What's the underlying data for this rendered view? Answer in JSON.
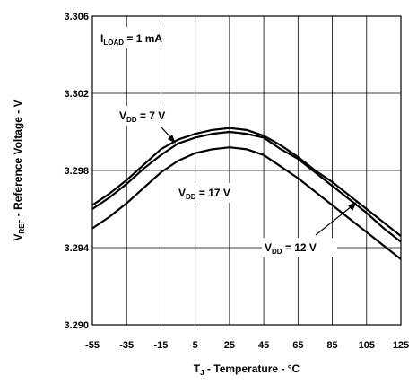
{
  "chart_data": {
    "type": "line",
    "title": "",
    "xlabel": {
      "main": "T",
      "sub": "J",
      "rest": " - Temperature - °C"
    },
    "ylabel": {
      "main": "V",
      "sub": "REF",
      "rest": " - Reference Voltage - V"
    },
    "xlim": [
      -55,
      125
    ],
    "ylim": [
      3.29,
      3.306
    ],
    "xticks": [
      -55,
      -35,
      -15,
      5,
      25,
      45,
      65,
      85,
      105,
      125
    ],
    "xtick_labels": [
      "-55",
      "-35",
      "-15",
      "5",
      "25",
      "45",
      "65",
      "85",
      "105",
      "125"
    ],
    "yticks_major": [
      3.29,
      3.294,
      3.298,
      3.302,
      3.306
    ],
    "ytick_labels": [
      "3.290",
      "3.294",
      "3.298",
      "3.302",
      "3.306"
    ],
    "yticks_grid": [
      3.29,
      3.294,
      3.298,
      3.302,
      3.306
    ],
    "grid": true,
    "annotations": {
      "load": {
        "main": "I",
        "sub": "LOAD",
        "rest": " = 1 mA"
      },
      "vdd7": {
        "main": "V",
        "sub": "DD",
        "rest": " = 7 V"
      },
      "vdd17": {
        "main": "V",
        "sub": "DD",
        "rest": " = 17 V"
      },
      "vdd12": {
        "main": "V",
        "sub": "DD",
        "rest": " = 12 V"
      }
    },
    "series": [
      {
        "name": "VDD = 7 V",
        "x": [
          -55,
          -45,
          -35,
          -25,
          -15,
          -5,
          5,
          15,
          25,
          35,
          45,
          55,
          65,
          75,
          85,
          95,
          105,
          115,
          125
        ],
        "y": [
          3.2962,
          3.2968,
          3.2975,
          3.2983,
          3.2991,
          3.2996,
          3.2999,
          3.3001,
          3.3002,
          3.3001,
          3.2998,
          3.2993,
          3.2987,
          3.298,
          3.2974,
          3.2967,
          3.296,
          3.2953,
          3.2946
        ]
      },
      {
        "name": "VDD = 12 V",
        "x": [
          -55,
          -45,
          -35,
          -25,
          -15,
          -5,
          5,
          15,
          25,
          35,
          45,
          55,
          65,
          75,
          85,
          95,
          105,
          115,
          125
        ],
        "y": [
          3.296,
          3.2966,
          3.2973,
          3.2981,
          3.2988,
          3.2994,
          3.2997,
          3.2999,
          3.3,
          3.2999,
          3.2997,
          3.2991,
          3.2986,
          3.2979,
          3.2972,
          3.2965,
          3.2958,
          3.295,
          3.2943
        ]
      },
      {
        "name": "VDD = 17 V",
        "x": [
          -55,
          -45,
          -35,
          -25,
          -15,
          -5,
          5,
          15,
          25,
          35,
          45,
          55,
          65,
          75,
          85,
          95,
          105,
          115,
          125
        ],
        "y": [
          3.295,
          3.2956,
          3.2963,
          3.2971,
          3.2979,
          3.2985,
          3.2989,
          3.2991,
          3.2992,
          3.2991,
          3.2988,
          3.2982,
          3.2976,
          3.2969,
          3.2962,
          3.2955,
          3.2948,
          3.2941,
          3.2934
        ]
      }
    ],
    "colors": {
      "line": "#000000",
      "grid": "#000000",
      "background": "#ffffff"
    }
  }
}
